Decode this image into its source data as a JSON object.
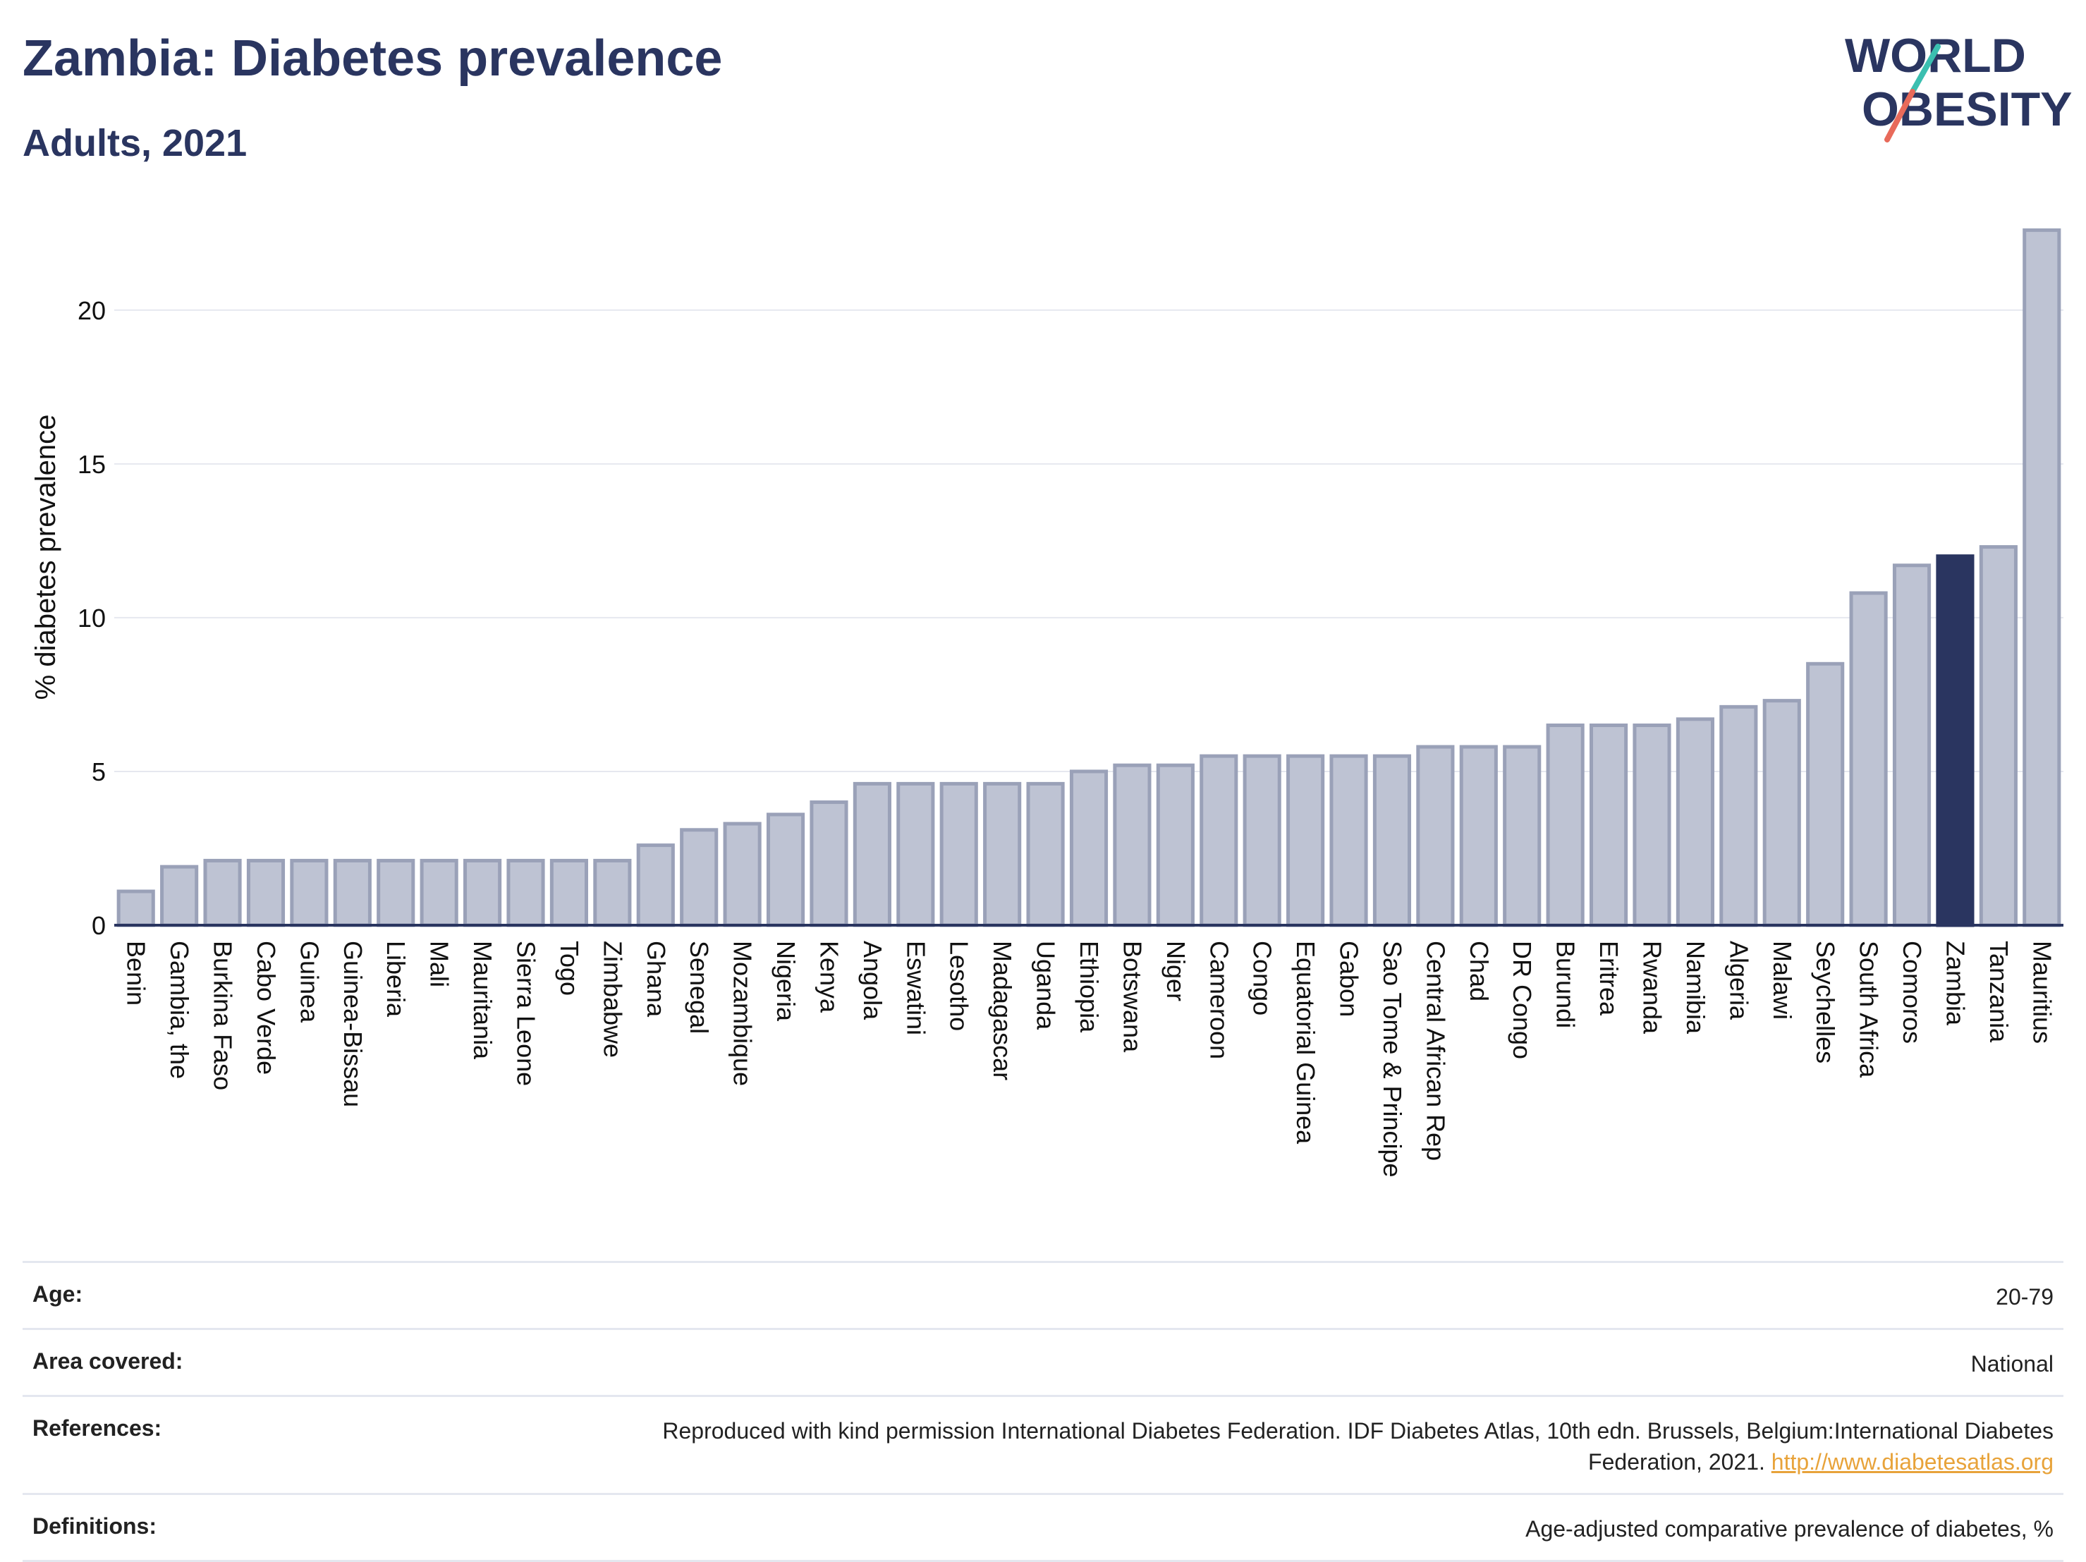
{
  "header": {
    "title": "Zambia: Diabetes prevalence",
    "subtitle": "Adults, 2021"
  },
  "logo": {
    "line1": "WORLD",
    "line2": "OBESITY",
    "colors": {
      "text": "#2a3560",
      "slash_top": "#3bbfb0",
      "slash_bottom": "#e86a5a"
    }
  },
  "chart_data": {
    "type": "bar",
    "title": "Zambia: Diabetes prevalence",
    "subtitle": "Adults, 2021",
    "xlabel": "",
    "ylabel": "% diabetes prevalence",
    "ylim": [
      0,
      22.7
    ],
    "yticks": [
      0,
      5,
      10,
      15,
      20
    ],
    "grid": true,
    "highlight": "Zambia",
    "colors": {
      "bar": "#bec3d3",
      "bar_edge": "#9aa1b8",
      "highlight": "#2a3560",
      "grid": "#e6e8ef"
    },
    "categories": [
      "Benin",
      "Gambia, the",
      "Burkina Faso",
      "Cabo Verde",
      "Guinea",
      "Guinea-Bissau",
      "Liberia",
      "Mali",
      "Mauritania",
      "Sierra Leone",
      "Togo",
      "Zimbabwe",
      "Ghana",
      "Senegal",
      "Mozambique",
      "Nigeria",
      "Kenya",
      "Angola",
      "Eswatini",
      "Lesotho",
      "Madagascar",
      "Uganda",
      "Ethiopia",
      "Botswana",
      "Niger",
      "Cameroon",
      "Congo",
      "Equatorial Guinea",
      "Gabon",
      "Sao Tome & Principe",
      "Central African Rep",
      "Chad",
      "DR Congo",
      "Burundi",
      "Eritrea",
      "Rwanda",
      "Namibia",
      "Algeria",
      "Malawi",
      "Seychelles",
      "South Africa",
      "Comoros",
      "Zambia",
      "Tanzania",
      "Mauritius"
    ],
    "values": [
      1.1,
      1.9,
      2.1,
      2.1,
      2.1,
      2.1,
      2.1,
      2.1,
      2.1,
      2.1,
      2.1,
      2.1,
      2.6,
      3.1,
      3.3,
      3.6,
      4.0,
      4.6,
      4.6,
      4.6,
      4.6,
      4.6,
      5.0,
      5.2,
      5.2,
      5.5,
      5.5,
      5.5,
      5.5,
      5.5,
      5.8,
      5.8,
      5.8,
      6.5,
      6.5,
      6.5,
      6.7,
      7.1,
      7.3,
      8.5,
      10.8,
      11.7,
      12.0,
      12.3,
      22.6
    ]
  },
  "footer": {
    "age_label": "Age:",
    "age_value": "20-79",
    "area_label": "Area covered:",
    "area_value": "National",
    "references_label": "References:",
    "references_value": "Reproduced with kind permission International Diabetes Federation.  IDF Diabetes Atlas, 10th edn. Brussels, Belgium:International Diabetes Federation, 2021.",
    "references_link": "http://www.diabetesatlas.org",
    "definitions_label": "Definitions:",
    "definitions_value": "Age-adjusted comparative prevalence of diabetes, %"
  }
}
